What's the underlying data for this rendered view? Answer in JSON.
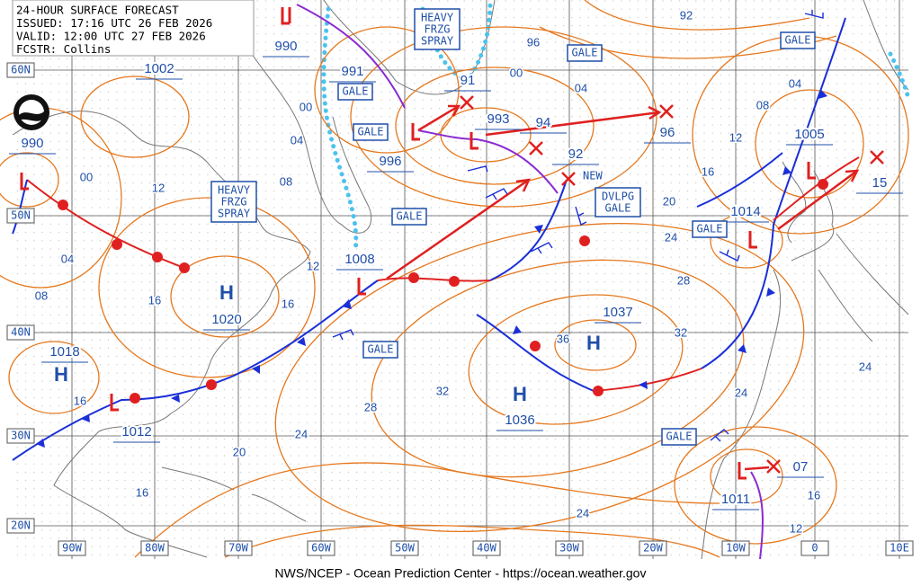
{
  "header": {
    "lines": [
      "24-HOUR SURFACE FORECAST",
      "ISSUED: 17:16 UTC 26 FEB 2026",
      "VALID: 12:00 UTC 27 FEB 2026",
      "FCSTR: Collins"
    ]
  },
  "latitudes": [
    "60N",
    "50N",
    "40N",
    "30N",
    "20N"
  ],
  "longitudes": [
    "90W",
    "80W",
    "70W",
    "60W",
    "50W",
    "40W",
    "30W",
    "20W",
    "10W",
    "0",
    "10E"
  ],
  "pressure_labels": [
    "1002",
    "990",
    "991",
    "990",
    "993",
    "94",
    "92",
    "96",
    "1005",
    "996",
    "1008",
    "1014",
    "15",
    "1020",
    "1037",
    "1018",
    "1036",
    "1012",
    "1011",
    "07",
    "91"
  ],
  "highs": [
    "H",
    "H",
    "H",
    "H"
  ],
  "isobar_labels": [
    "92",
    "96",
    "00",
    "04",
    "08",
    "04",
    "12",
    "16",
    "20",
    "24",
    "28",
    "32",
    "36",
    "32",
    "28",
    "24",
    "20",
    "16",
    "24",
    "24",
    "24",
    "16",
    "12",
    "00",
    "04",
    "08",
    "12",
    "16",
    "12",
    "16",
    "00",
    "04",
    "08",
    "16"
  ],
  "gale_boxes": [
    "GALE",
    "GALE",
    "GALE",
    "GALE",
    "GALE",
    "GALE",
    "GALE",
    "GALE"
  ],
  "multi_boxes": [
    [
      "HEAVY",
      "FRZG",
      "SPRAY"
    ],
    [
      "HEAVY",
      "FRZG",
      "SPRAY"
    ],
    [
      "DVLPG",
      "GALE"
    ]
  ],
  "new_label": "NEW",
  "footer": "NWS/NCEP - Ocean Prediction Center - https://ocean.weather.gov"
}
